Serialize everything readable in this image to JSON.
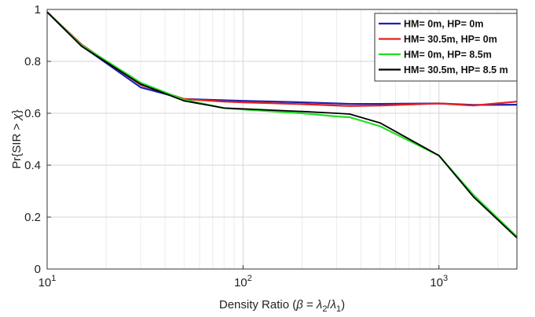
{
  "chart_data": {
    "type": "line",
    "xscale": "log",
    "xlim": [
      10,
      2500
    ],
    "ylim": [
      0,
      1
    ],
    "grid": true,
    "legend_position": "top-right",
    "xlabel": "Density Ratio (β = λ₂/λ₁)",
    "ylabel": "Pr{SIR > χ}",
    "xticks": [
      {
        "base": "10",
        "exp": "1",
        "value": 10
      },
      {
        "base": "10",
        "exp": "2",
        "value": 100
      },
      {
        "base": "10",
        "exp": "3",
        "value": 1000
      }
    ],
    "yticks": [
      "0",
      "0.2",
      "0.4",
      "0.6",
      "0.8",
      "1"
    ],
    "series": [
      {
        "name": "HM= 0m, HP= 0m",
        "color": "#2020b0",
        "x": [
          10,
          15,
          30,
          50,
          80,
          100,
          200,
          300,
          350,
          500,
          1000,
          1500,
          2500
        ],
        "y": [
          0.99,
          0.86,
          0.7,
          0.655,
          0.65,
          0.648,
          0.642,
          0.638,
          0.636,
          0.636,
          0.638,
          0.632,
          0.633
        ]
      },
      {
        "name": "HM= 30.5m, HP= 0m",
        "color": "#e02020",
        "x": [
          10,
          15,
          30,
          50,
          80,
          100,
          200,
          300,
          350,
          500,
          1000,
          1500,
          2500
        ],
        "y": [
          0.99,
          0.865,
          0.71,
          0.655,
          0.645,
          0.642,
          0.635,
          0.63,
          0.628,
          0.63,
          0.638,
          0.63,
          0.645
        ]
      },
      {
        "name": "HM= 0m, HP= 8.5m",
        "color": "#22dd22",
        "x": [
          10,
          15,
          30,
          50,
          80,
          100,
          200,
          300,
          350,
          500,
          1000,
          1500,
          2500
        ],
        "y": [
          0.99,
          0.862,
          0.718,
          0.652,
          0.62,
          0.615,
          0.6,
          0.588,
          0.585,
          0.55,
          0.437,
          0.285,
          0.125
        ]
      },
      {
        "name": "HM= 30.5m, HP= 8.5 m",
        "color": "#000000",
        "x": [
          10,
          15,
          30,
          50,
          80,
          100,
          200,
          300,
          350,
          500,
          1000,
          1500,
          2500
        ],
        "y": [
          0.99,
          0.858,
          0.712,
          0.648,
          0.62,
          0.617,
          0.607,
          0.6,
          0.597,
          0.563,
          0.437,
          0.278,
          0.12
        ]
      }
    ]
  }
}
